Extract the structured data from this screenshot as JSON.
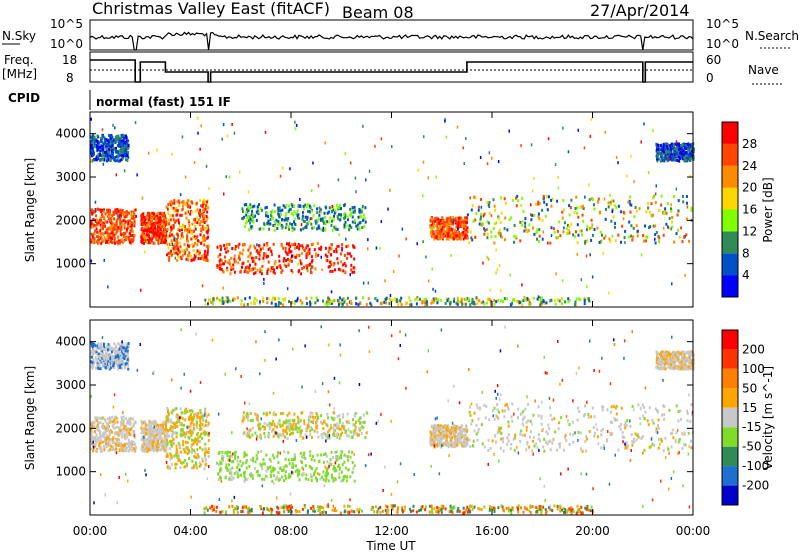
{
  "header": {
    "site": "Christmas Valley East (fitACF)",
    "beam": "Beam 08",
    "date": "27/Apr/2014"
  },
  "panels": {
    "nsky": {
      "label": "N.Sky",
      "ytick_top": "10^5",
      "ytick_bottom": "10^0"
    },
    "nsearch": {
      "label": "N.Search",
      "ytick_top": "10^5",
      "ytick_bottom": "10^0"
    },
    "freq": {
      "label_line1": "Freq.",
      "label_line2": "[MHz]",
      "ytick_top": "18",
      "ytick_bottom": "8"
    },
    "nave": {
      "label": "Nave",
      "ytick_top": "60",
      "ytick_bottom": "0"
    },
    "cpid": {
      "label": "CPID",
      "value": "normal (fast) 151 IF"
    }
  },
  "chart_data": [
    {
      "type": "heatmap",
      "ylabel": "Slant Range [km]",
      "ylim": [
        0,
        4500
      ],
      "y_ticks": [
        1000,
        2000,
        3000,
        4000
      ],
      "xlim_hours": [
        0,
        24
      ],
      "x_ticks": [
        "00:00",
        "04:00",
        "08:00",
        "12:00",
        "16:00",
        "20:00",
        "00:00"
      ],
      "colorbar": {
        "label": "Power [dB]",
        "ticks": [
          "4",
          "8",
          "12",
          "16",
          "20",
          "24",
          "28"
        ],
        "colors": [
          "#0000ff",
          "#0050c8",
          "#2e8b57",
          "#7fff00",
          "#ffd700",
          "#ff8c00",
          "#ff4500",
          "#ff0000"
        ]
      }
    },
    {
      "type": "heatmap",
      "ylabel": "Slant Range [km]",
      "ylim": [
        0,
        4500
      ],
      "y_ticks": [
        1000,
        2000,
        3000,
        4000
      ],
      "xlim_hours": [
        0,
        24
      ],
      "x_ticks": [
        "00:00",
        "04:00",
        "08:00",
        "12:00",
        "16:00",
        "20:00",
        "00:00"
      ],
      "xlabel": "Time UT",
      "colorbar": {
        "label": "Velocity [m s^-1]",
        "ticks": [
          "200",
          "100",
          "50",
          "15",
          "-15",
          "-50",
          "-100",
          "-200"
        ],
        "colors": [
          "#0000cd",
          "#1e6fd0",
          "#2e8b57",
          "#7fdd2a",
          "#c8c8c8",
          "#ffa500",
          "#ff7f00",
          "#ff3300",
          "#ff0000"
        ]
      }
    }
  ]
}
